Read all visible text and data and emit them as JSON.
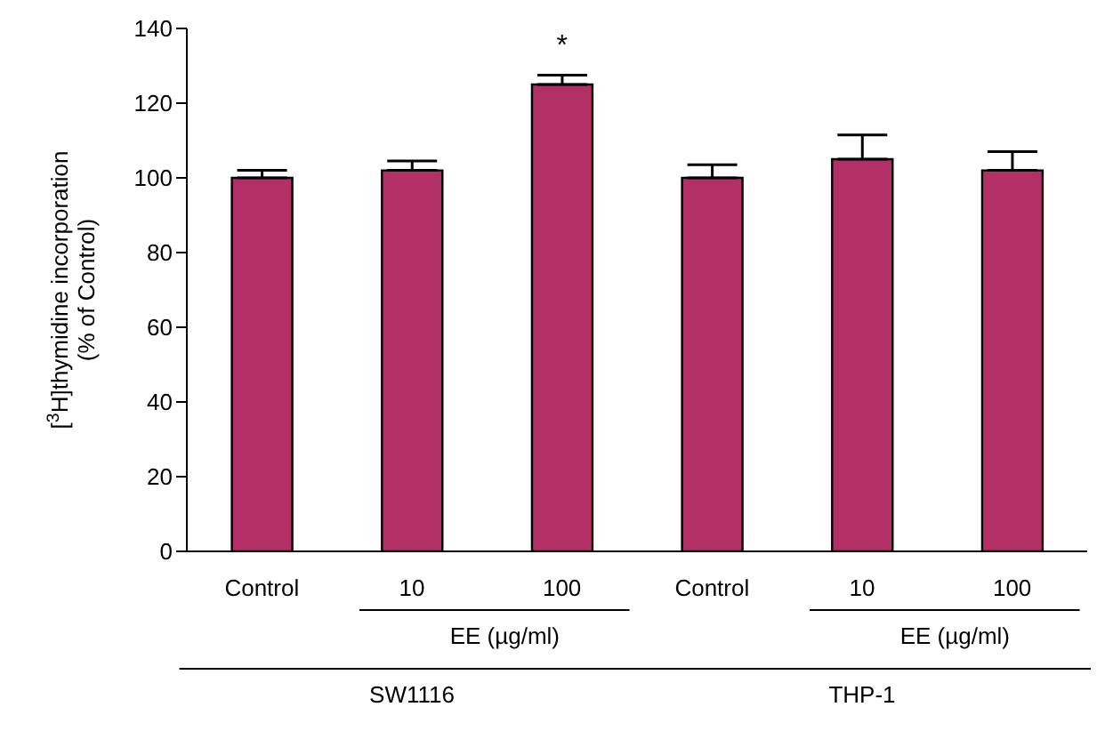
{
  "chart_data": {
    "type": "bar",
    "ylabel": "[$^{3}$H]thymidine incorporation\n(% of Control)",
    "categories": [
      "Control",
      "10",
      "100",
      "Control",
      "10",
      "100"
    ],
    "values": [
      100,
      102,
      125,
      100,
      105,
      102
    ],
    "errors": [
      2,
      2.5,
      2.5,
      3.5,
      6.5,
      5
    ],
    "color": "#b33066",
    "ylim": [
      0,
      140
    ],
    "yticks": [
      0,
      20,
      40,
      60,
      80,
      100,
      120,
      140
    ],
    "grid": false,
    "legend": false,
    "annotations": [
      "*",
      "EE (µg/ml)",
      "EE (µg/ml)",
      "SW1116",
      "THP-1"
    ]
  }
}
